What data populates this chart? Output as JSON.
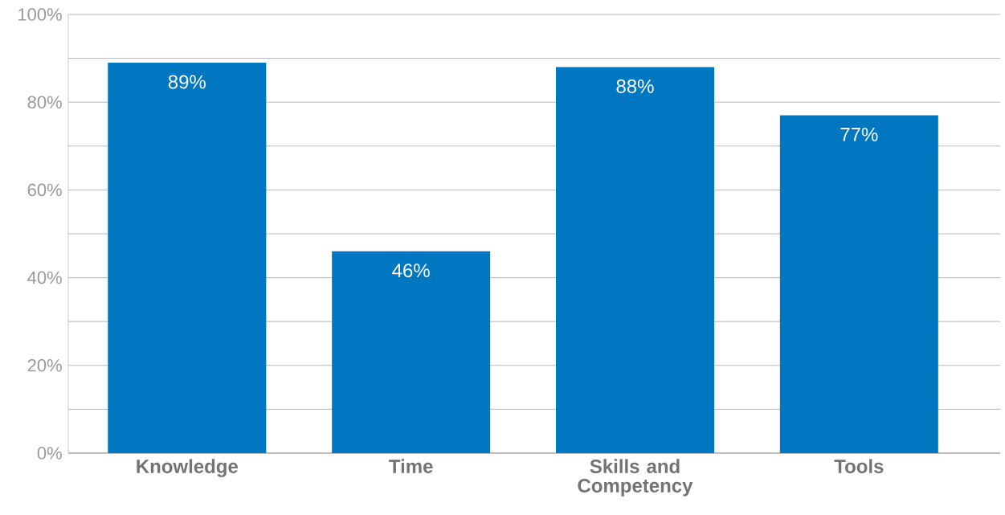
{
  "chart_data": {
    "type": "bar",
    "categories": [
      "Knowledge",
      "Time",
      "Skills and Competency",
      "Tools"
    ],
    "values": [
      89,
      46,
      88,
      77
    ],
    "value_labels": [
      "89%",
      "46%",
      "88%",
      "77%"
    ],
    "color": "#0077c0",
    "ylim": [
      0,
      100
    ],
    "yticks": [
      {
        "value": 0,
        "label": "0%"
      },
      {
        "value": 10,
        "label": null
      },
      {
        "value": 20,
        "label": "20%"
      },
      {
        "value": 30,
        "label": null
      },
      {
        "value": 40,
        "label": "40%"
      },
      {
        "value": 50,
        "label": null
      },
      {
        "value": 60,
        "label": "60%"
      },
      {
        "value": 70,
        "label": null
      },
      {
        "value": 80,
        "label": "80%"
      },
      {
        "value": 90,
        "label": null
      },
      {
        "value": 100,
        "label": "100%"
      }
    ],
    "grid": "y"
  }
}
